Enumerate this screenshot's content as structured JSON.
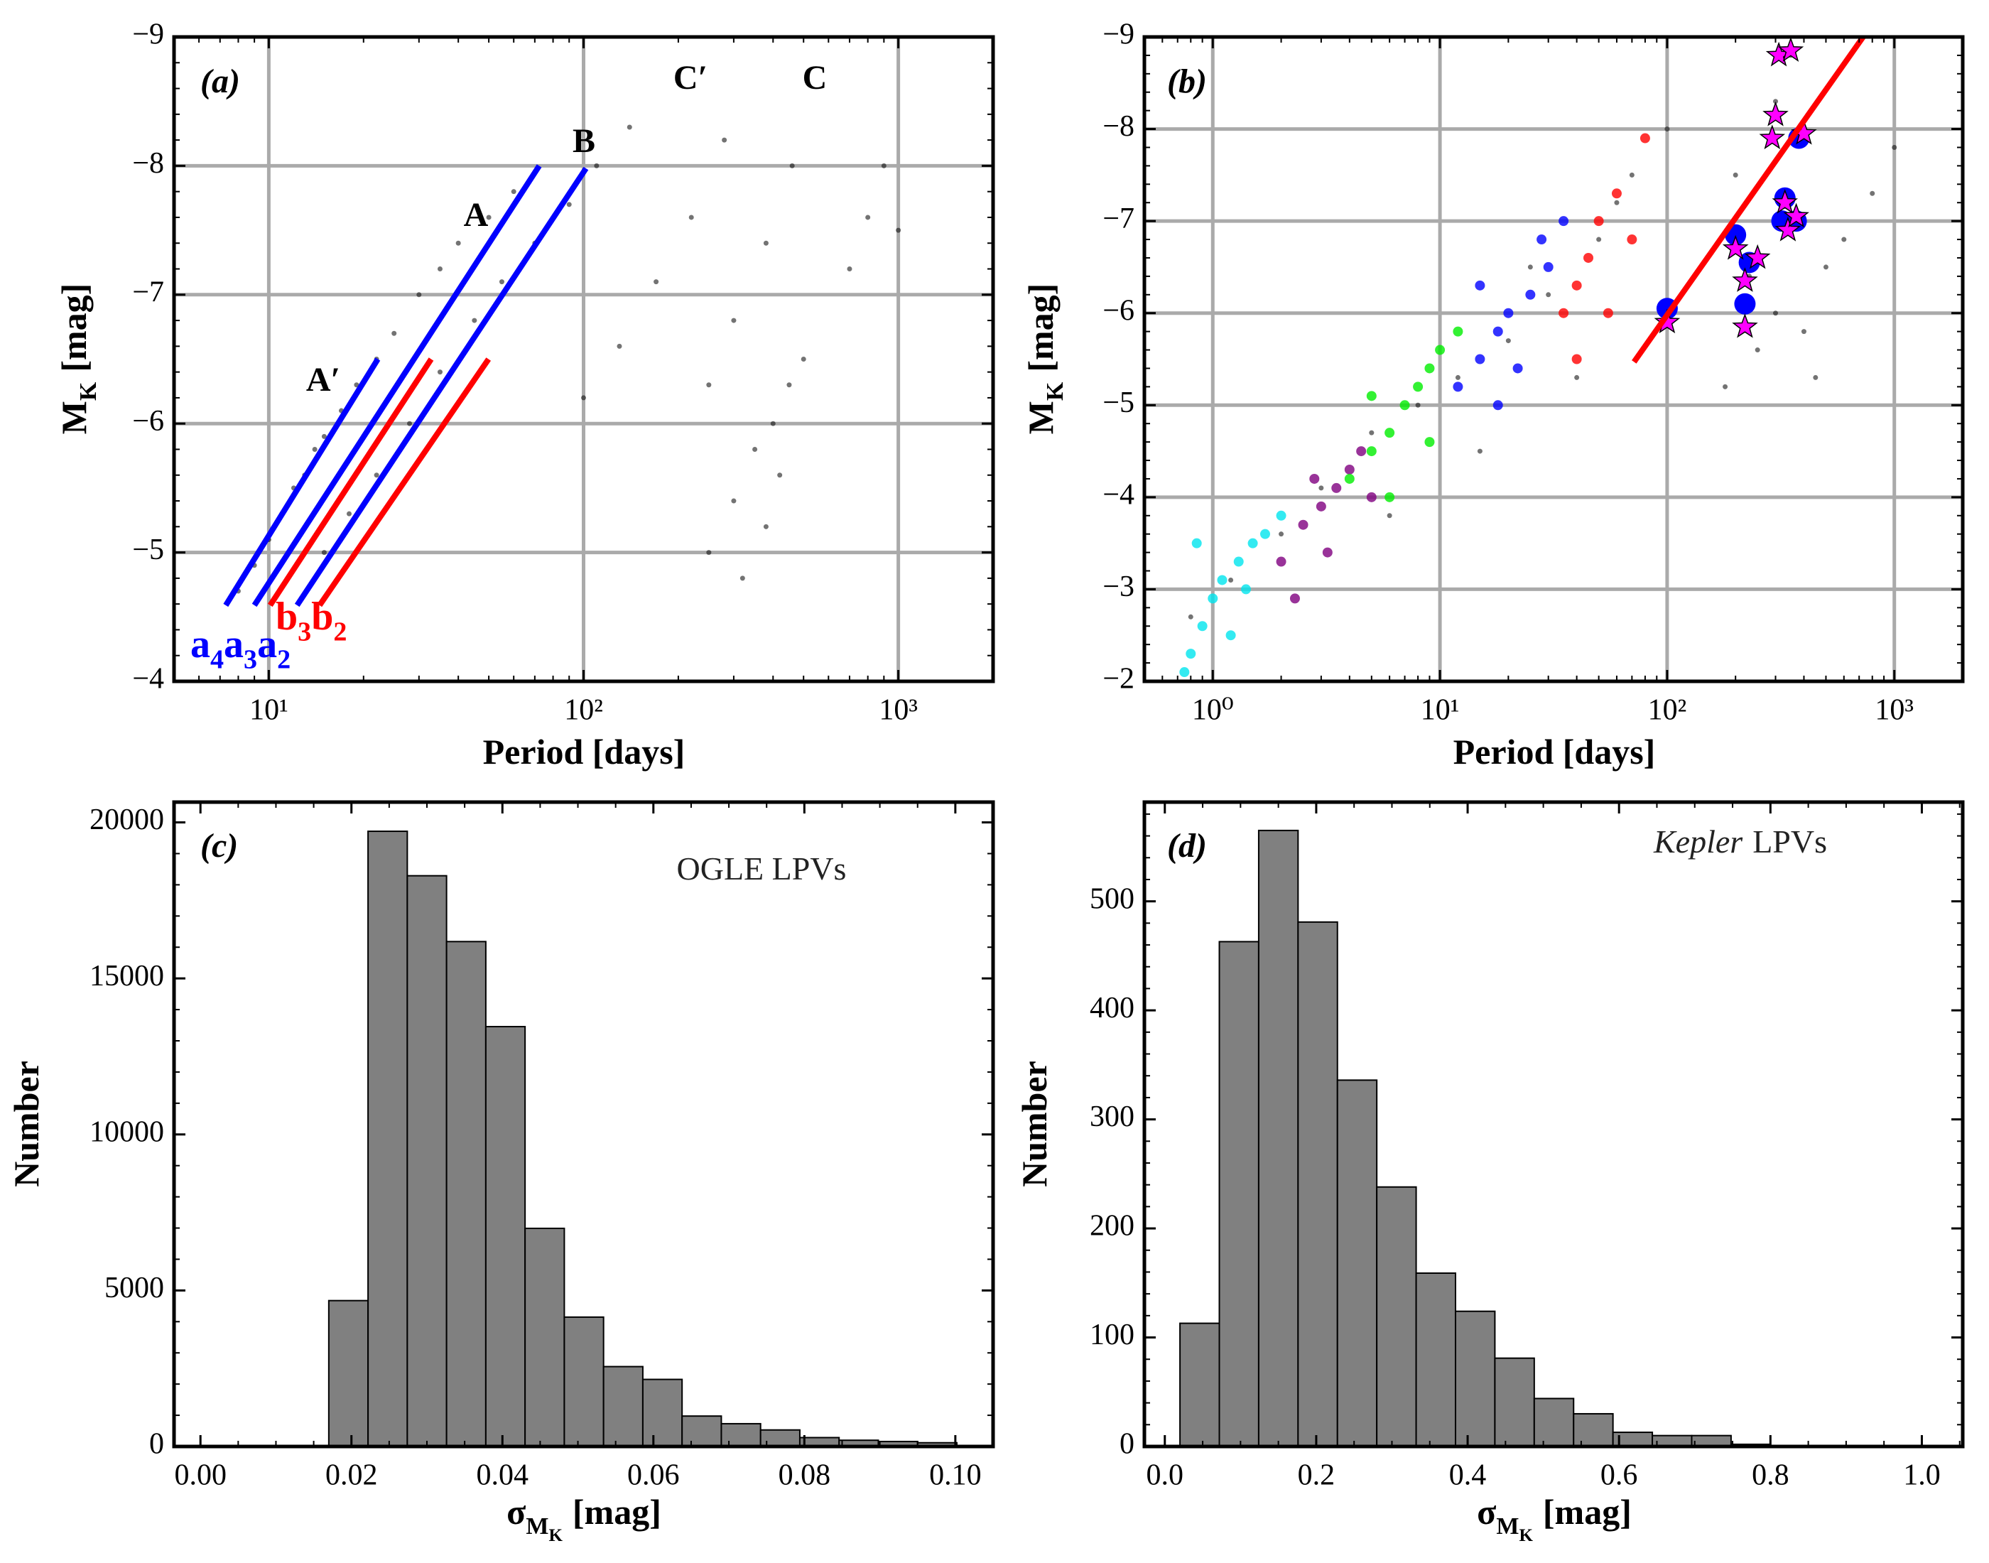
{
  "chart_data": [
    {
      "type": "scatter",
      "panel_label": "(a)",
      "xlabel": "Period [days]",
      "ylabel": [
        {
          "text": "M",
          "level": 0
        },
        {
          "text": "K",
          "level": 1
        },
        {
          "text": "[mag]",
          "level": 0
        }
      ],
      "xscale": "log",
      "xlim": [
        5,
        2000
      ],
      "ylim": [
        -4,
        -9
      ],
      "xticks": [
        {
          "value": 10,
          "label": "10¹"
        },
        {
          "value": 100,
          "label": "10²"
        },
        {
          "value": 1000,
          "label": "10³"
        }
      ],
      "yticks": [
        {
          "value": -9,
          "label": "−9"
        },
        {
          "value": -8,
          "label": "−8"
        },
        {
          "value": -7,
          "label": "−7"
        },
        {
          "value": -6,
          "label": "−6"
        },
        {
          "value": -5,
          "label": "−5"
        },
        {
          "value": -4,
          "label": "−4"
        }
      ],
      "grid": true,
      "series": [
        {
          "color": "#000000",
          "marker": "dot",
          "x": [
            8,
            9,
            10,
            11,
            12,
            13,
            14,
            15,
            17,
            19,
            22,
            25,
            30,
            35,
            40,
            50,
            60,
            15,
            18,
            22,
            28,
            35,
            45,
            55,
            70,
            90,
            110,
            140,
            100,
            130,
            170,
            220,
            280,
            250,
            300,
            380,
            460,
            250,
            300,
            350,
            400,
            420,
            450,
            380,
            500,
            320,
            700,
            800,
            900,
            1000
          ],
          "values": [
            -4.7,
            -4.9,
            -5.1,
            -5.3,
            -5.5,
            -5.6,
            -5.8,
            -5.9,
            -6.1,
            -6.3,
            -6.5,
            -6.7,
            -7.0,
            -7.2,
            -7.4,
            -7.6,
            -7.8,
            -5.0,
            -5.3,
            -5.6,
            -6.0,
            -6.4,
            -6.8,
            -7.1,
            -7.4,
            -7.7,
            -8.0,
            -8.3,
            -6.2,
            -6.6,
            -7.1,
            -7.6,
            -8.2,
            -6.3,
            -6.8,
            -7.4,
            -8.0,
            -5.0,
            -5.4,
            -5.8,
            -6.0,
            -5.6,
            -6.3,
            -5.2,
            -6.5,
            -4.8,
            -7.2,
            -7.6,
            -8.0,
            -7.5
          ]
        }
      ],
      "lines": [
        {
          "color": "#0000ff",
          "x": [
            7.3,
            22.2
          ],
          "values": [
            -4.59,
            -6.5
          ]
        },
        {
          "color": "#0000ff",
          "x": [
            9.0,
            72.3
          ],
          "values": [
            -4.59,
            -8.0
          ]
        },
        {
          "color": "#0000ff",
          "x": [
            12.3,
            101.8
          ],
          "values": [
            -4.59,
            -7.98
          ]
        },
        {
          "color": "#ff0000",
          "x": [
            10.1,
            32.8
          ],
          "values": [
            -4.59,
            -6.5
          ]
        },
        {
          "color": "#ff0000",
          "x": [
            14.5,
            49.9
          ],
          "values": [
            -4.59,
            -6.5
          ]
        }
      ],
      "annotations": [
        "A′",
        "A",
        "B",
        "C′",
        "C"
      ],
      "line_labels": [
        {
          "color": "#0000ff",
          "parts": [
            {
              "text": "a",
              "level": 0
            },
            {
              "text": "4",
              "level": 1
            },
            {
              "text": "a",
              "level": 0
            },
            {
              "text": "3",
              "level": 1
            },
            {
              "text": "a",
              "level": 0
            },
            {
              "text": "2",
              "level": 1
            }
          ]
        },
        {
          "color": "#ff0000",
          "parts": [
            {
              "text": "b",
              "level": 0
            },
            {
              "text": "3",
              "level": 1
            },
            {
              "text": "b",
              "level": 0
            },
            {
              "text": "2",
              "level": 1
            }
          ]
        }
      ]
    },
    {
      "type": "scatter",
      "panel_label": "(b)",
      "xlabel": "Period [days]",
      "ylabel": [
        {
          "text": "M",
          "level": 0
        },
        {
          "text": "K",
          "level": 1
        },
        {
          "text": "[mag]",
          "level": 0
        }
      ],
      "xscale": "log",
      "xlim": [
        0.5,
        2000
      ],
      "ylim": [
        -2,
        -9
      ],
      "xticks": [
        {
          "value": 1,
          "label": "10⁰"
        },
        {
          "value": 10,
          "label": "10¹"
        },
        {
          "value": 100,
          "label": "10²"
        },
        {
          "value": 1000,
          "label": "10³"
        }
      ],
      "yticks": [
        {
          "value": -9,
          "label": "−9"
        },
        {
          "value": -8,
          "label": "−8"
        },
        {
          "value": -7,
          "label": "−7"
        },
        {
          "value": -6,
          "label": "−6"
        },
        {
          "value": -5,
          "label": "−5"
        },
        {
          "value": -4,
          "label": "−4"
        },
        {
          "value": -3,
          "label": "−3"
        },
        {
          "value": -2,
          "label": "−2"
        }
      ],
      "grid": true,
      "series": [
        {
          "color": "#000000",
          "marker": "dot",
          "x": [
            0.8,
            1.2,
            2,
            3,
            5,
            8,
            12,
            20,
            30,
            50,
            70,
            100,
            60,
            25,
            200,
            300,
            350,
            250,
            300,
            400,
            500,
            800,
            1000,
            40,
            15,
            6,
            180,
            230,
            450,
            600
          ],
          "values": [
            -2.7,
            -3.1,
            -3.6,
            -4.1,
            -4.7,
            -5.0,
            -5.3,
            -5.7,
            -6.2,
            -6.8,
            -7.5,
            -8.0,
            -7.2,
            -6.5,
            -7.5,
            -8.3,
            -8.8,
            -5.6,
            -6.0,
            -5.8,
            -6.5,
            -7.3,
            -7.8,
            -5.3,
            -4.5,
            -3.8,
            -5.2,
            -6.4,
            -5.3,
            -6.8
          ]
        },
        {
          "color": "#00e5ee",
          "marker": "circle",
          "x": [
            0.8,
            0.9,
            1.0,
            1.1,
            1.3,
            1.5,
            1.7,
            2.0,
            0.85,
            1.2,
            0.75,
            1.4
          ],
          "values": [
            -2.3,
            -2.6,
            -2.9,
            -3.1,
            -3.3,
            -3.5,
            -3.6,
            -3.8,
            -3.5,
            -2.5,
            -2.1,
            -3.0
          ]
        },
        {
          "color": "#800080",
          "marker": "circle",
          "x": [
            2.0,
            2.5,
            3,
            3.5,
            4,
            4.5,
            2.8,
            3.2,
            5,
            2.3
          ],
          "values": [
            -3.3,
            -3.7,
            -3.9,
            -4.1,
            -4.3,
            -4.5,
            -4.2,
            -3.4,
            -4.0,
            -2.9
          ]
        },
        {
          "color": "#00ee00",
          "marker": "circle",
          "x": [
            4,
            5,
            6,
            7,
            8,
            9,
            10,
            6,
            12,
            5,
            9
          ],
          "values": [
            -4.2,
            -4.5,
            -4.7,
            -5.0,
            -5.2,
            -5.4,
            -5.6,
            -4.0,
            -5.8,
            -5.1,
            -4.6
          ]
        },
        {
          "color": "#0000ff",
          "marker": "circle",
          "x": [
            12,
            15,
            18,
            20,
            25,
            30,
            22,
            15,
            35,
            18,
            28
          ],
          "values": [
            -5.2,
            -5.5,
            -5.8,
            -6.0,
            -6.2,
            -6.5,
            -5.4,
            -6.3,
            -7.0,
            -5.0,
            -6.8
          ]
        },
        {
          "color": "#ff0000",
          "marker": "circle",
          "x": [
            35,
            40,
            45,
            50,
            60,
            80,
            40,
            55,
            70
          ],
          "values": [
            -6.0,
            -6.3,
            -6.6,
            -7.0,
            -7.3,
            -7.9,
            -5.5,
            -6.0,
            -6.8
          ]
        },
        {
          "color": "#0000ff",
          "marker": "big-circle",
          "x": [
            100,
            200,
            220,
            230,
            320,
            330,
            370,
            380
          ],
          "values": [
            -6.05,
            -6.85,
            -6.1,
            -6.55,
            -7.0,
            -7.25,
            -7.0,
            -7.9
          ]
        },
        {
          "color": "#ff00ff",
          "marker": "star",
          "x": [
            100,
            200,
            220,
            220,
            250,
            290,
            300,
            310,
            330,
            340,
            350,
            370,
            400
          ],
          "values": [
            -5.9,
            -6.7,
            -6.35,
            -5.85,
            -6.6,
            -7.9,
            -8.15,
            -8.8,
            -7.2,
            -6.9,
            -8.85,
            -7.05,
            -7.95
          ]
        }
      ],
      "lines": [
        {
          "color": "#ff0000",
          "x": [
            71.5,
            729
          ],
          "values": [
            -5.47,
            -9
          ]
        }
      ]
    },
    {
      "type": "histogram",
      "panel_label": "(c)",
      "annotation": [
        {
          "text": "OGLE LPVs",
          "level": 0
        }
      ],
      "xlabel": [
        {
          "text": "σ",
          "level": 0
        },
        {
          "text": "M",
          "level": 1
        },
        {
          "text": "K",
          "level": 2
        },
        {
          "text": "[mag]",
          "level": 0
        }
      ],
      "ylabel": "Number",
      "xlim": [
        -0.0035,
        0.105
      ],
      "ylim": [
        0,
        20650
      ],
      "xticks": [
        {
          "value": 0,
          "label": "0.00"
        },
        {
          "value": 0.02,
          "label": "0.02"
        },
        {
          "value": 0.04,
          "label": "0.04"
        },
        {
          "value": 0.06,
          "label": "0.06"
        },
        {
          "value": 0.08,
          "label": "0.08"
        },
        {
          "value": 0.1,
          "label": "0.10"
        }
      ],
      "yticks": [
        0,
        5000,
        10000,
        15000,
        20000
      ],
      "color": "#808080",
      "bins": [
        0.017,
        0.0222,
        0.0274,
        0.0326,
        0.0378,
        0.043,
        0.0482,
        0.0534,
        0.0586,
        0.0638,
        0.069,
        0.0742,
        0.0794,
        0.0846,
        0.0898,
        0.095,
        0.1002
      ],
      "values": [
        4675,
        19715,
        18290,
        16180,
        13455,
        6990,
        4146,
        2560,
        2150,
        975,
        730,
        530,
        285,
        200,
        160,
        120
      ]
    },
    {
      "type": "histogram",
      "panel_label": "(d)",
      "annotation": [
        {
          "text": "Kepler",
          "level": 0,
          "style": "italic"
        },
        {
          "text": "LPVs",
          "level": 0
        }
      ],
      "xlabel": [
        {
          "text": "σ",
          "level": 0
        },
        {
          "text": "M",
          "level": 1
        },
        {
          "text": "K",
          "level": 2
        },
        {
          "text": "[mag]",
          "level": 0
        }
      ],
      "ylabel": "Number",
      "xlim": [
        -0.027,
        1.054
      ],
      "ylim": [
        0,
        591
      ],
      "xticks": [
        {
          "value": 0,
          "label": "0.0"
        },
        {
          "value": 0.2,
          "label": "0.2"
        },
        {
          "value": 0.4,
          "label": "0.4"
        },
        {
          "value": 0.6,
          "label": "0.6"
        },
        {
          "value": 0.8,
          "label": "0.8"
        },
        {
          "value": 1,
          "label": "1.0"
        }
      ],
      "yticks": [
        0,
        100,
        200,
        300,
        400,
        500
      ],
      "color": "#808080",
      "bins": [
        0.02,
        0.072,
        0.124,
        0.176,
        0.228,
        0.28,
        0.332,
        0.384,
        0.436,
        0.488,
        0.54,
        0.592,
        0.644,
        0.696,
        0.748,
        0.8
      ],
      "values": [
        113,
        463,
        565,
        481,
        336,
        238,
        159,
        124,
        81,
        44,
        30,
        13,
        10,
        10,
        2
      ]
    }
  ]
}
